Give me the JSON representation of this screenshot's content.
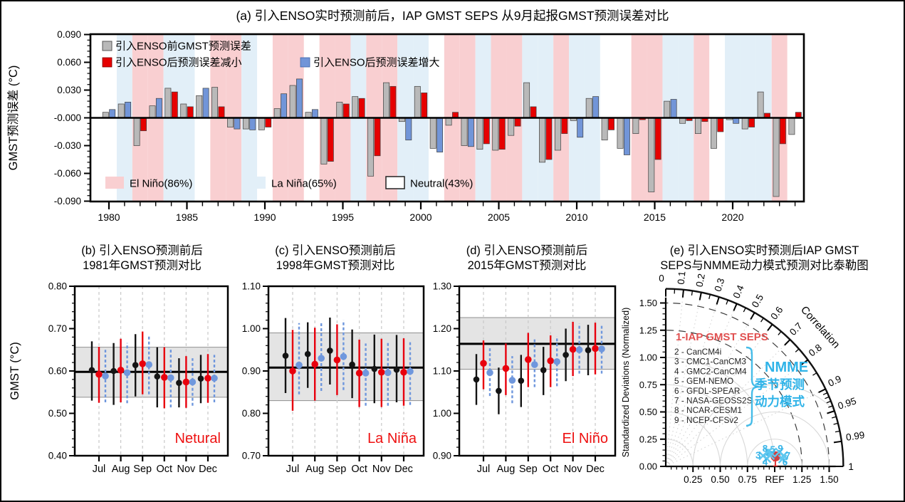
{
  "chart_data": [
    {
      "type": "bar",
      "panel": "a",
      "title": "(a) 引入ENSO实时预测前后，IAP GMST SEPS 从9月起报GMST预测误差对比",
      "ylabel": "GMST预测误差 (°C)",
      "ylim": [
        -0.098,
        0.098
      ],
      "ytick_step": 0.03,
      "xticks": [
        1980,
        1985,
        1990,
        1995,
        2000,
        2005,
        2010,
        2015,
        2020
      ],
      "start_year": 1980,
      "legend": {
        "pre": "引入ENSO前GMST预测误差",
        "decrease": "引入ENSO后预测误差减小",
        "increase": "引入ENSO后预测误差增大"
      },
      "band_legend": [
        {
          "key": "e",
          "label": "El Niño(86%)"
        },
        {
          "key": "l",
          "label": "La Niña(65%)"
        },
        {
          "key": "n",
          "label": "Neutral(43%)"
        }
      ],
      "colors": {
        "pre": "#b9b9b9",
        "decrease": "#e60000",
        "increase": "#7195d8",
        "elnino": "#f9cfd1",
        "lanina": "#e2eff8",
        "neutral": "#ffffff"
      },
      "bg": [
        "n",
        "l",
        "e",
        "e",
        "l",
        "l",
        "n",
        "e",
        "e",
        "l",
        "n",
        "e",
        "e",
        "n",
        "e",
        "e",
        "l",
        "e",
        "e",
        "l",
        "l",
        "n",
        "e",
        "e",
        "l",
        "e",
        "e",
        "l",
        "l",
        "e",
        "l",
        "l",
        "n",
        "n",
        "e",
        "e",
        "l",
        "l",
        "e",
        "n",
        "l",
        "l",
        "l",
        "e",
        "n"
      ],
      "pre": [
        0.006,
        0.015,
        -0.03,
        0.013,
        0.032,
        0.015,
        0.024,
        0.033,
        -0.01,
        -0.012,
        -0.013,
        0.01,
        0.035,
        0.006,
        -0.05,
        0.017,
        0.023,
        -0.063,
        0.038,
        -0.004,
        0.034,
        -0.033,
        -0.008,
        -0.03,
        -0.034,
        -0.035,
        -0.019,
        0.038,
        -0.048,
        -0.035,
        -0.003,
        0.021,
        -0.024,
        -0.033,
        -0.017,
        -0.08,
        0.018,
        -0.006,
        -0.017,
        -0.033,
        -0.002,
        -0.012,
        0.028,
        -0.085,
        -0.018
      ],
      "post": [
        0.009,
        0.017,
        -0.014,
        0.021,
        0.028,
        0.012,
        0.032,
        0.012,
        -0.012,
        -0.013,
        -0.01,
        0.026,
        0.042,
        0.009,
        -0.047,
        0.015,
        0.021,
        -0.041,
        0.034,
        -0.024,
        0.027,
        -0.037,
        0.006,
        -0.031,
        -0.028,
        -0.034,
        -0.009,
        0.012,
        -0.045,
        -0.017,
        -0.021,
        0.023,
        -0.013,
        -0.04,
        -0.002,
        -0.045,
        0.02,
        -0.003,
        -0.004,
        -0.015,
        -0.006,
        -0.01,
        0.005,
        -0.028,
        0.006
      ],
      "post_type": [
        "w",
        "w",
        "b",
        "w",
        "b",
        "b",
        "w",
        "b",
        "w",
        "w",
        "b",
        "w",
        "w",
        "w",
        "b",
        "b",
        "b",
        "b",
        "b",
        "w",
        "b",
        "w",
        "b",
        "w",
        "b",
        "b",
        "b",
        "b",
        "b",
        "b",
        "w",
        "w",
        "b",
        "w",
        "b",
        "b",
        "w",
        "b",
        "b",
        "b",
        "w",
        "b",
        "b",
        "b",
        "b"
      ]
    },
    {
      "type": "scatter",
      "panel": "b",
      "title1": "(b) 引入ENSO预测前后",
      "title2": "1981年GMST预测对比",
      "ylabel": "GMST (°C)",
      "ylim": [
        0.4,
        0.8
      ],
      "ytick_major": 0.1,
      "ytick_minor": 0.02,
      "months": [
        "Jul",
        "Aug",
        "Sep",
        "Oct",
        "Nov",
        "Dec"
      ],
      "enso_label": "Netural",
      "obs": 0.598,
      "obs_band": [
        0.538,
        0.656
      ],
      "black": [
        [
          0.602,
          0.53,
          0.67
        ],
        [
          0.6,
          0.52,
          0.666
        ],
        [
          0.614,
          0.54,
          0.687
        ],
        [
          0.587,
          0.514,
          0.656
        ],
        [
          0.572,
          0.514,
          0.63
        ],
        [
          0.582,
          0.524,
          0.638
        ]
      ],
      "red": [
        [
          0.592,
          0.525,
          0.657
        ],
        [
          0.602,
          0.526,
          0.676
        ],
        [
          0.617,
          0.545,
          0.693
        ],
        [
          0.585,
          0.512,
          0.656
        ],
        [
          0.574,
          0.513,
          0.635
        ],
        [
          0.583,
          0.525,
          0.64
        ]
      ],
      "blue": [
        [
          0.588,
          0.526,
          0.65
        ],
        [
          0.596,
          0.524,
          0.666
        ],
        [
          0.615,
          0.545,
          0.686
        ],
        [
          0.584,
          0.514,
          0.652
        ],
        [
          0.574,
          0.518,
          0.63
        ],
        [
          0.583,
          0.526,
          0.638
        ]
      ]
    },
    {
      "type": "scatter",
      "panel": "c",
      "title1": "(c) 引入ENSO预测前后",
      "title2": "1998年GMST预测对比",
      "ylim": [
        0.7,
        1.1
      ],
      "ytick_major": 0.1,
      "ytick_minor": 0.02,
      "months": [
        "Jul",
        "Aug",
        "Sep",
        "Oct",
        "Nov",
        "Dec"
      ],
      "enso_label": "La Niña",
      "obs": 0.908,
      "obs_band": [
        0.83,
        0.99
      ],
      "black": [
        [
          0.936,
          0.848,
          1.025
        ],
        [
          0.94,
          0.86,
          1.015
        ],
        [
          0.948,
          0.868,
          1.026
        ],
        [
          0.915,
          0.836,
          0.998
        ],
        [
          0.905,
          0.824,
          0.986
        ],
        [
          0.903,
          0.826,
          0.985
        ]
      ],
      "red": [
        [
          0.9,
          0.806,
          0.997
        ],
        [
          0.916,
          0.83,
          1.002
        ],
        [
          0.926,
          0.843,
          1.01
        ],
        [
          0.895,
          0.815,
          0.974
        ],
        [
          0.897,
          0.815,
          0.976
        ],
        [
          0.897,
          0.818,
          0.977
        ]
      ],
      "blue": [
        [
          0.914,
          0.845,
          1.013
        ],
        [
          0.93,
          0.853,
          1.015
        ],
        [
          0.934,
          0.855,
          1.02
        ],
        [
          0.895,
          0.818,
          0.965
        ],
        [
          0.896,
          0.818,
          0.968
        ],
        [
          0.899,
          0.82,
          0.972
        ]
      ]
    },
    {
      "type": "scatter",
      "panel": "d",
      "title1": "(d) 引入ENSO预测前后",
      "title2": "2015年GMST预测对比",
      "ylim": [
        0.9,
        1.3
      ],
      "ytick_major": 0.1,
      "ytick_minor": 0.02,
      "months": [
        "Jul",
        "Aug",
        "Sep",
        "Oct",
        "Nov",
        "Dec"
      ],
      "enso_label": "El Niño",
      "obs": 1.164,
      "obs_band": [
        1.104,
        1.226
      ],
      "black": [
        [
          1.08,
          1.02,
          1.14
        ],
        [
          1.053,
          0.998,
          1.108
        ],
        [
          1.077,
          1.015,
          1.138
        ],
        [
          1.102,
          1.043,
          1.157
        ],
        [
          1.138,
          1.076,
          1.2
        ],
        [
          1.149,
          1.09,
          1.209
        ]
      ],
      "red": [
        [
          1.118,
          1.057,
          1.172
        ],
        [
          1.106,
          1.043,
          1.165
        ],
        [
          1.127,
          1.062,
          1.19
        ],
        [
          1.124,
          1.062,
          1.184
        ],
        [
          1.151,
          1.088,
          1.216
        ],
        [
          1.153,
          1.092,
          1.214
        ]
      ],
      "blue": [
        [
          1.096,
          1.041,
          1.155
        ],
        [
          1.078,
          1.024,
          1.135
        ],
        [
          1.115,
          1.062,
          1.178
        ],
        [
          1.122,
          1.064,
          1.182
        ],
        [
          1.15,
          1.094,
          1.212
        ],
        [
          1.152,
          1.094,
          1.21
        ]
      ]
    },
    {
      "type": "taylor",
      "panel": "e",
      "title1": "(e) 引入ENSO实时预测后IAP GMST",
      "title2": "SEPS与NMME动力模式预测对比泰勒图",
      "ylabel": "Standardized Deviations (Normalized)",
      "corr_label": "Correlation",
      "ref_label": "REF",
      "arc_end_label": "1",
      "std_ticks": [
        0,
        0.25,
        0.5,
        0.75,
        1.0,
        1.25,
        1.5
      ],
      "xtick_labels": [
        "0.25",
        "0.50",
        "0.75",
        "REF",
        "1.25",
        "1.50"
      ],
      "corr_major": [
        {
          "v": 0,
          "t": "0"
        },
        {
          "v": 0.1,
          "t": "0.1"
        },
        {
          "v": 0.2,
          "t": "0.2"
        },
        {
          "v": 0.3,
          "t": "0.3"
        },
        {
          "v": 0.4,
          "t": "0.4"
        },
        {
          "v": 0.5,
          "t": "0.5"
        },
        {
          "v": 0.6,
          "t": "0.6"
        },
        {
          "v": 0.7,
          "t": "0.7"
        },
        {
          "v": 0.8,
          "t": "0.8"
        },
        {
          "v": 0.9,
          "t": "0.9"
        },
        {
          "v": 0.95,
          "t": "0.95"
        },
        {
          "v": 0.99,
          "t": "0.99"
        },
        {
          "v": 1,
          "t": "1"
        }
      ],
      "corr_minor": [
        0.05,
        0.15,
        0.25,
        0.35,
        0.45,
        0.55,
        0.65,
        0.75,
        0.85,
        0.91,
        0.92,
        0.93,
        0.94,
        0.96,
        0.97,
        0.98
      ],
      "std_circles_solid": [
        0.25,
        0.5,
        0.75,
        1.0
      ],
      "std_circles_dashed": [
        1.25,
        1.5
      ],
      "rms_circles": [
        0.25,
        0.5,
        0.75
      ],
      "radials": [
        0.1,
        0.2,
        0.3,
        0.4,
        0.5,
        0.6,
        0.7,
        0.8,
        0.9
      ],
      "ref_model": "1-IAP GMST SEPS",
      "model_list": [
        "2 - CanCM4i",
        "3 - CMC1-CanCM3",
        "4 - GMC2-CanCM4",
        "5 - GEM-NEMO",
        "6 - GFDL-SPEAR",
        "7 - NASA-GEOSS2S",
        "8 - NCAR-CESM1",
        "9 - NCEP-CFSv2"
      ],
      "nmme_label": [
        "NMME",
        "季节预测",
        "动力模式"
      ],
      "points": [
        {
          "id": "1",
          "x": 1.008,
          "y": 0.092,
          "lx": 1.005,
          "ly": 0.028,
          "ref": true
        },
        {
          "id": "2",
          "x": 0.96,
          "y": 0.1,
          "lx": 0.942,
          "ly": 0.128
        },
        {
          "id": "3",
          "x": 0.893,
          "y": 0.098,
          "lx": 0.848,
          "ly": 0.1
        },
        {
          "id": "4",
          "x": 0.928,
          "y": 0.072,
          "lx": 0.912,
          "ly": 0.04
        },
        {
          "id": "5",
          "x": 0.97,
          "y": 0.122,
          "lx": 0.982,
          "ly": 0.152
        },
        {
          "id": "6",
          "x": 1.072,
          "y": 0.068,
          "lx": 1.095,
          "ly": 0.04
        },
        {
          "id": "7",
          "x": 1.082,
          "y": 0.1,
          "lx": 1.12,
          "ly": 0.098
        },
        {
          "id": "8",
          "x": 0.94,
          "y": 0.135,
          "lx": 0.912,
          "ly": 0.165
        },
        {
          "id": "9",
          "x": 1.042,
          "y": 0.132,
          "lx": 1.052,
          "ly": 0.165
        }
      ],
      "colors": {
        "marker": "#5ec7ef",
        "label": "#3ab5e8",
        "ref_point": "#cf4244",
        "ref_text": "#e05050",
        "nmme": "#2fb3e8"
      }
    }
  ]
}
